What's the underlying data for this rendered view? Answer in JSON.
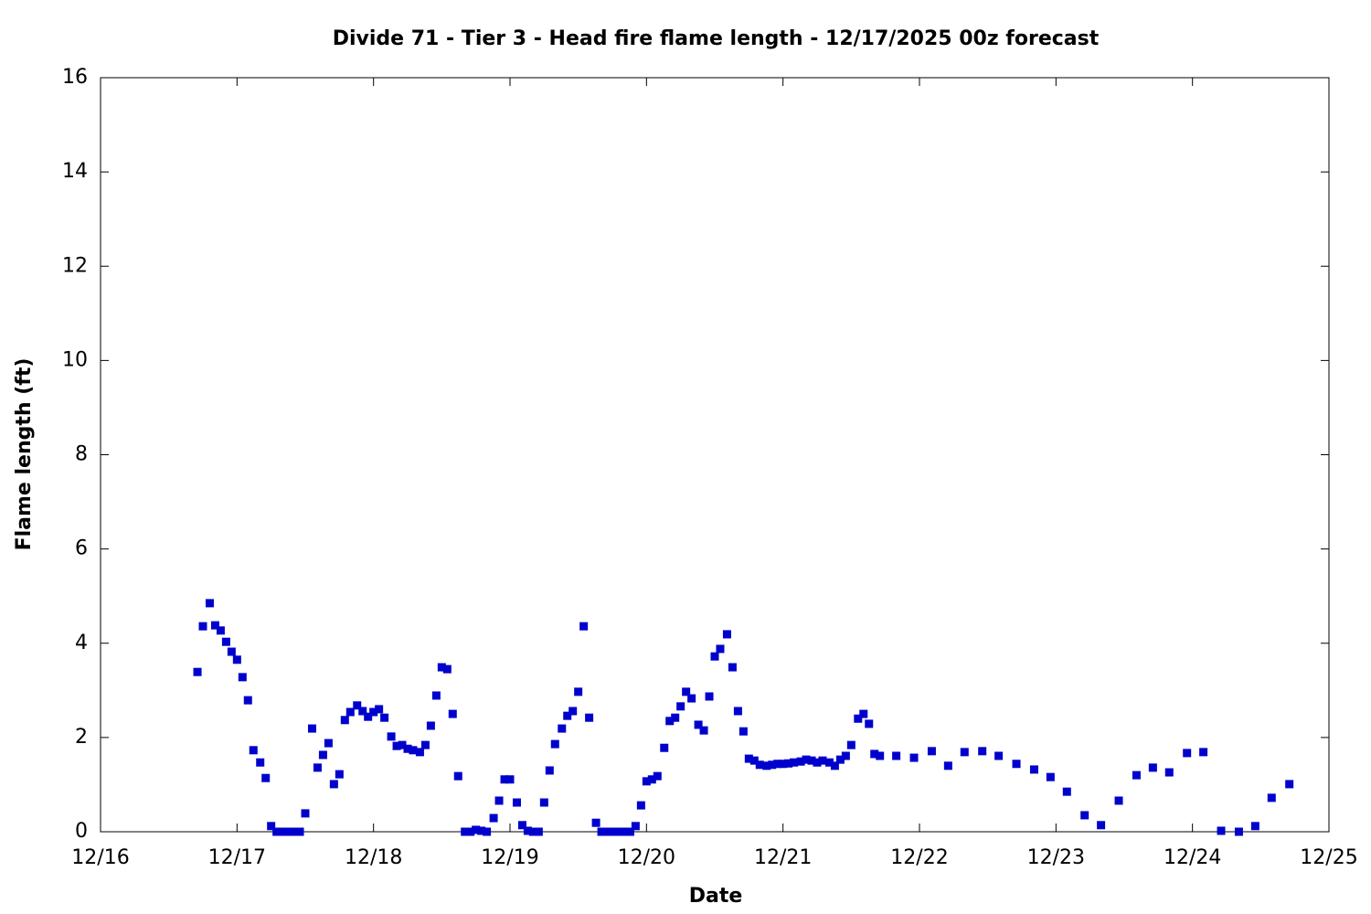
{
  "chart_data": {
    "type": "scatter",
    "title": "Divide 71 - Tier 3 - Head fire flame length - 12/17/2025 00z forecast",
    "xlabel": "Date",
    "ylabel": "Flame length (ft)",
    "color": "#0000cc",
    "xlim": [
      0,
      9
    ],
    "ylim": [
      0,
      16
    ],
    "xticks": [
      {
        "value": 0,
        "label": "12/16"
      },
      {
        "value": 1,
        "label": "12/17"
      },
      {
        "value": 2,
        "label": "12/18"
      },
      {
        "value": 3,
        "label": "12/19"
      },
      {
        "value": 4,
        "label": "12/20"
      },
      {
        "value": 5,
        "label": "12/21"
      },
      {
        "value": 6,
        "label": "12/22"
      },
      {
        "value": 7,
        "label": "12/23"
      },
      {
        "value": 8,
        "label": "12/24"
      },
      {
        "value": 9,
        "label": "12/25"
      }
    ],
    "yticks": [
      0,
      2,
      4,
      6,
      8,
      10,
      12,
      14,
      16
    ],
    "x": [
      0.71,
      0.75,
      0.8,
      0.84,
      0.88,
      0.92,
      0.96,
      1.0,
      1.04,
      1.08,
      1.12,
      1.17,
      1.21,
      1.25,
      1.29,
      1.33,
      1.38,
      1.42,
      1.46,
      1.5,
      1.55,
      1.59,
      1.63,
      1.67,
      1.71,
      1.75,
      1.79,
      1.83,
      1.88,
      1.92,
      1.96,
      2.0,
      2.04,
      2.08,
      2.13,
      2.17,
      2.21,
      2.25,
      2.29,
      2.34,
      2.38,
      2.42,
      2.46,
      2.5,
      2.54,
      2.58,
      2.62,
      2.67,
      2.71,
      2.75,
      2.79,
      2.83,
      2.88,
      2.92,
      2.96,
      3.0,
      3.05,
      3.09,
      3.13,
      3.17,
      3.21,
      3.25,
      3.29,
      3.33,
      3.38,
      3.42,
      3.46,
      3.5,
      3.54,
      3.58,
      3.63,
      3.67,
      3.71,
      3.75,
      3.8,
      3.84,
      3.88,
      3.92,
      3.96,
      4.0,
      4.04,
      4.08,
      4.13,
      4.17,
      4.21,
      4.25,
      4.29,
      4.33,
      4.38,
      4.42,
      4.46,
      4.5,
      4.54,
      4.59,
      4.63,
      4.67,
      4.71,
      4.75,
      4.79,
      4.83,
      4.88,
      4.92,
      4.96,
      5.0,
      5.04,
      5.08,
      5.13,
      5.17,
      5.21,
      5.25,
      5.29,
      5.34,
      5.38,
      5.42,
      5.46,
      5.5,
      5.55,
      5.59,
      5.63,
      5.67,
      5.71,
      5.83,
      5.96,
      6.09,
      6.21,
      6.33,
      6.46,
      6.58,
      6.71,
      6.84,
      6.96,
      7.08,
      7.21,
      7.33,
      7.46,
      7.59,
      7.71,
      7.83,
      7.96,
      8.08,
      8.21,
      8.34,
      8.46,
      8.58,
      8.71
    ],
    "values": [
      3.39,
      4.36,
      4.85,
      4.38,
      4.27,
      4.03,
      3.82,
      3.65,
      3.28,
      2.79,
      1.73,
      1.47,
      1.14,
      0.12,
      0,
      0,
      0,
      0,
      0,
      0.39,
      2.19,
      1.36,
      1.63,
      1.88,
      1.01,
      1.22,
      2.37,
      2.54,
      2.68,
      2.56,
      2.44,
      2.54,
      2.6,
      2.42,
      2.02,
      1.82,
      1.84,
      1.76,
      1.73,
      1.69,
      1.84,
      2.25,
      2.89,
      3.49,
      3.45,
      2.5,
      1.18,
      0,
      0,
      0.04,
      0.02,
      0,
      0.29,
      0.66,
      1.11,
      1.11,
      0.62,
      0.14,
      0.02,
      0,
      0,
      0.62,
      1.3,
      1.86,
      2.19,
      2.46,
      2.56,
      2.97,
      4.36,
      2.42,
      0.19,
      0,
      0,
      0,
      0,
      0,
      0,
      0.12,
      0.56,
      1.07,
      1.11,
      1.18,
      1.78,
      2.35,
      2.42,
      2.66,
      2.97,
      2.83,
      2.27,
      2.15,
      2.87,
      3.72,
      3.88,
      4.19,
      3.49,
      2.56,
      2.13,
      1.55,
      1.51,
      1.42,
      1.4,
      1.42,
      1.44,
      1.44,
      1.45,
      1.47,
      1.49,
      1.53,
      1.51,
      1.47,
      1.51,
      1.47,
      1.4,
      1.53,
      1.61,
      1.84,
      2.4,
      2.5,
      2.29,
      1.65,
      1.61,
      1.61,
      1.57,
      1.71,
      1.4,
      1.69,
      1.71,
      1.61,
      1.44,
      1.32,
      1.16,
      0.85,
      0.35,
      0.14,
      0.66,
      1.2,
      1.36,
      1.26,
      1.67,
      1.69,
      0.02,
      0,
      0.12,
      0.72,
      1.01
    ]
  }
}
